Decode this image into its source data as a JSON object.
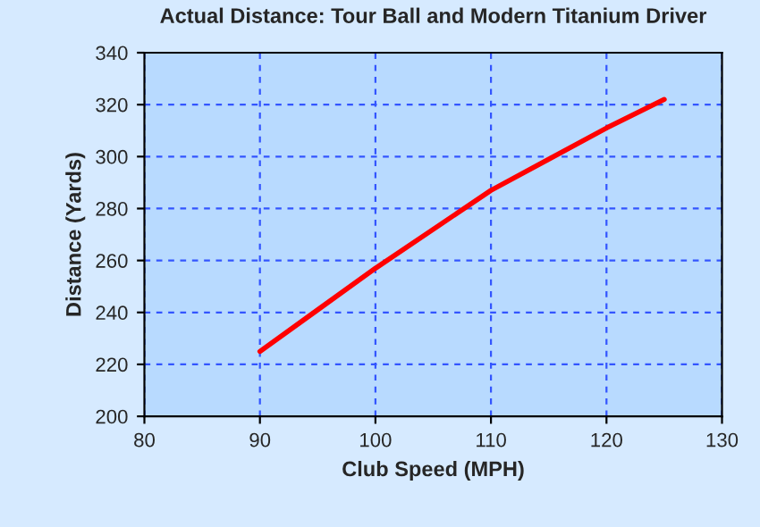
{
  "chart_data": {
    "type": "line",
    "title": "Actual Distance: Tour Ball and Modern Titanium Driver",
    "xlabel": "Club Speed (MPH)",
    "ylabel": "Distance (Yards)",
    "x": [
      90,
      95,
      100,
      105,
      110,
      115,
      120,
      125
    ],
    "series": [
      {
        "color": "#ff0000",
        "values": [
          225,
          241,
          257,
          272,
          287,
          299,
          311,
          322
        ]
      }
    ],
    "xlim": [
      80,
      130
    ],
    "xticks": [
      80,
      90,
      100,
      110,
      120,
      130
    ],
    "ylim": [
      200,
      340
    ],
    "yticks": [
      200,
      220,
      240,
      260,
      280,
      300,
      320,
      340
    ],
    "grid": true,
    "legend": false,
    "marker": "none",
    "line_style": "solid"
  }
}
